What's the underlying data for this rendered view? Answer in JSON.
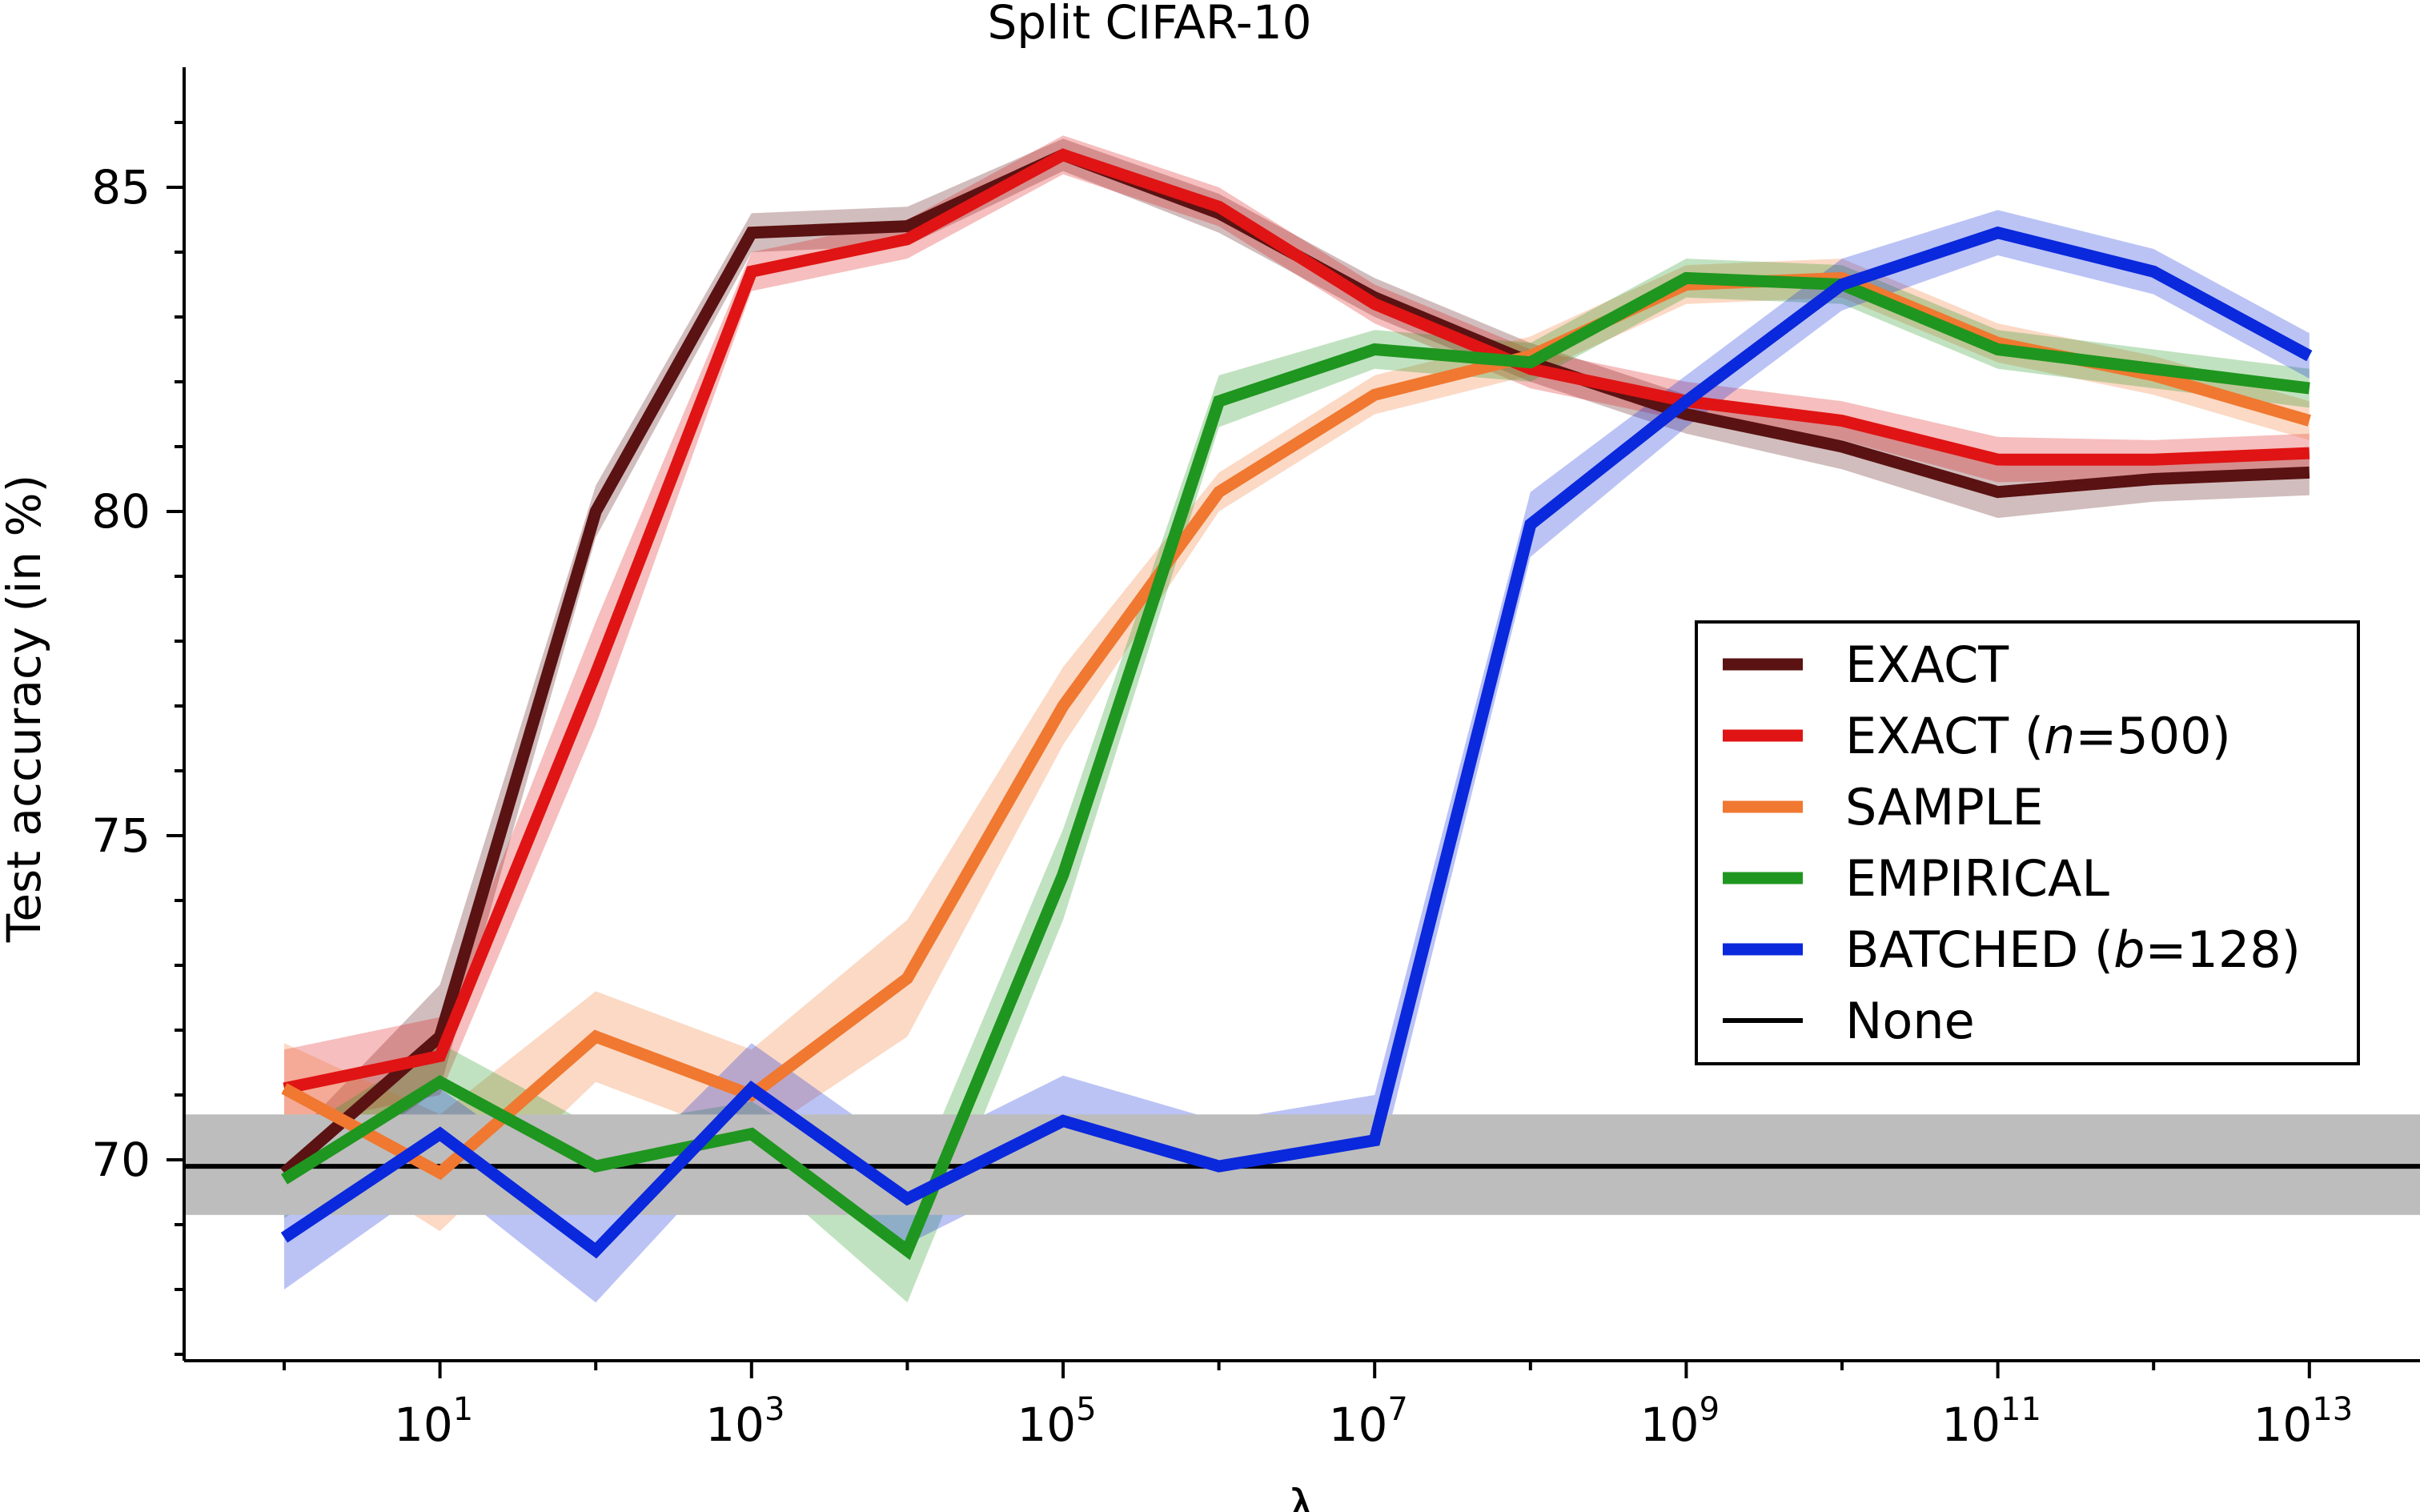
{
  "chart_data": {
    "type": "line",
    "title": "Split CIFAR-10",
    "xlabel": "λ",
    "ylabel": "Test accuracy (in %)",
    "x_scale": "log10",
    "x_tick_exponents": [
      1,
      3,
      5,
      7,
      9,
      11,
      13
    ],
    "x_tick_base": "10",
    "xlim_log10": [
      -0.65,
      13.65
    ],
    "y_ticks": [
      70,
      75,
      80,
      85
    ],
    "ylim": [
      67.0,
      86.7
    ],
    "x_log10": [
      0,
      1,
      2,
      3,
      4,
      5,
      6,
      7,
      8,
      9,
      10,
      11,
      12,
      13
    ],
    "legend_position": "center-right",
    "series": [
      {
        "name": "EXACT",
        "color": "#5a1212",
        "values": [
          69.8,
          71.9,
          80.0,
          84.3,
          84.4,
          85.5,
          84.6,
          83.3,
          82.3,
          81.5,
          81.0,
          80.3,
          80.5,
          80.6
        ],
        "band": [
          0.4,
          0.8,
          0.4,
          0.3,
          0.3,
          0.25,
          0.3,
          0.3,
          0.3,
          0.3,
          0.35,
          0.4,
          0.35,
          0.35
        ]
      },
      {
        "name": "EXACT (n=500)",
        "name_parts": [
          "EXACT (",
          "n",
          "=500)"
        ],
        "color": "#e01414",
        "values": [
          71.1,
          71.6,
          77.5,
          83.7,
          84.2,
          85.5,
          84.7,
          83.2,
          82.2,
          81.7,
          81.4,
          80.8,
          80.8,
          80.9
        ],
        "band": [
          0.6,
          0.6,
          0.8,
          0.3,
          0.3,
          0.3,
          0.3,
          0.3,
          0.3,
          0.3,
          0.3,
          0.35,
          0.3,
          0.3
        ]
      },
      {
        "name": "SAMPLE",
        "color": "#f07830",
        "values": [
          71.1,
          69.8,
          71.9,
          71.0,
          72.8,
          77.0,
          80.3,
          81.8,
          82.4,
          83.5,
          83.6,
          82.6,
          82.1,
          81.4
        ],
        "band": [
          0.7,
          0.9,
          0.7,
          0.7,
          0.9,
          0.6,
          0.3,
          0.3,
          0.3,
          0.3,
          0.3,
          0.3,
          0.3,
          0.3
        ]
      },
      {
        "name": "EMPIRICAL",
        "color": "#1f961f",
        "values": [
          69.7,
          71.2,
          69.9,
          70.4,
          68.6,
          74.4,
          81.7,
          82.5,
          82.3,
          83.6,
          83.5,
          82.5,
          82.2,
          81.9
        ],
        "band": [
          0.6,
          0.6,
          0.6,
          0.5,
          0.8,
          0.7,
          0.4,
          0.3,
          0.3,
          0.3,
          0.3,
          0.3,
          0.3,
          0.3
        ]
      },
      {
        "name": "BATCHED (b=128)",
        "name_parts": [
          "BATCHED (",
          "b",
          "=128)"
        ],
        "color": "#0a28dc",
        "values": [
          68.8,
          70.4,
          68.6,
          71.1,
          69.4,
          70.6,
          69.9,
          70.3,
          79.8,
          81.7,
          83.5,
          84.3,
          83.7,
          82.4
        ],
        "band": [
          0.8,
          0.7,
          0.8,
          0.7,
          0.7,
          0.7,
          0.7,
          0.7,
          0.5,
          0.4,
          0.4,
          0.35,
          0.35,
          0.35
        ]
      },
      {
        "name": "None",
        "color": "#000000",
        "type": "baseline",
        "value": 69.9,
        "band_low": 69.15,
        "band_high": 70.7
      }
    ]
  }
}
